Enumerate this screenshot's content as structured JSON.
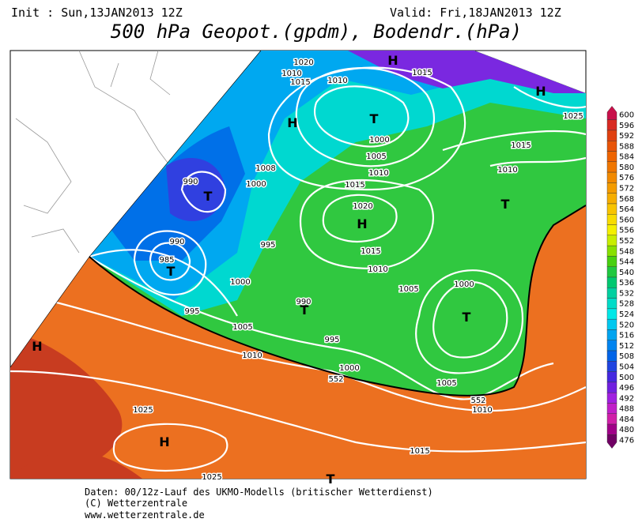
{
  "header": {
    "init": "Init : Sun,13JAN2013 12Z",
    "valid": "Valid: Fri,18JAN2013 12Z",
    "title": "500 hPa Geopot.(gpdm), Bodendr.(hPa)"
  },
  "map_labels": [
    "1020",
    "1010",
    "1015",
    "1010",
    "1015",
    "H",
    "H",
    "1025",
    "T",
    "H",
    "1000",
    "1005",
    "1015",
    "1010",
    "1008",
    "990",
    "T",
    "1000",
    "1015",
    "1010",
    "1020",
    "T",
    "H",
    "990",
    "995",
    "985",
    "T",
    "1015",
    "1010",
    "1000",
    "1000",
    "1005",
    "990",
    "T",
    "995",
    "T",
    "1005",
    "995",
    "1010",
    "1000",
    "552",
    "H",
    "1005",
    "552",
    "1010",
    "1025",
    "H",
    "1015",
    "1025",
    "T"
  ],
  "colorbar": {
    "ticks": [
      600,
      596,
      592,
      588,
      584,
      580,
      576,
      572,
      568,
      564,
      560,
      556,
      552,
      548,
      544,
      540,
      536,
      532,
      528,
      524,
      520,
      516,
      512,
      508,
      504,
      500,
      496,
      492,
      488,
      484,
      480,
      476
    ],
    "colors": [
      "#c8104a",
      "#d82a22",
      "#e04010",
      "#e85408",
      "#ee6400",
      "#f07600",
      "#f28a00",
      "#f49c00",
      "#f6ae00",
      "#f8c400",
      "#f8dc00",
      "#f4f000",
      "#c8ee00",
      "#88e000",
      "#48d010",
      "#20c840",
      "#00c870",
      "#00d0a0",
      "#00dcc8",
      "#00e8e8",
      "#00c8f0",
      "#00a4f0",
      "#0084f0",
      "#0064e8",
      "#2044e0",
      "#4428e0",
      "#7020e0",
      "#a020e0",
      "#c020c8",
      "#d020a8",
      "#a00088",
      "#700064"
    ]
  },
  "footer": {
    "lines": [
      "Daten: 00/12z-Lauf des UKMO-Modells (britischer Wetterdienst)",
      "(C) Wetterzentrale",
      "www.wetterzentrale.de"
    ]
  }
}
